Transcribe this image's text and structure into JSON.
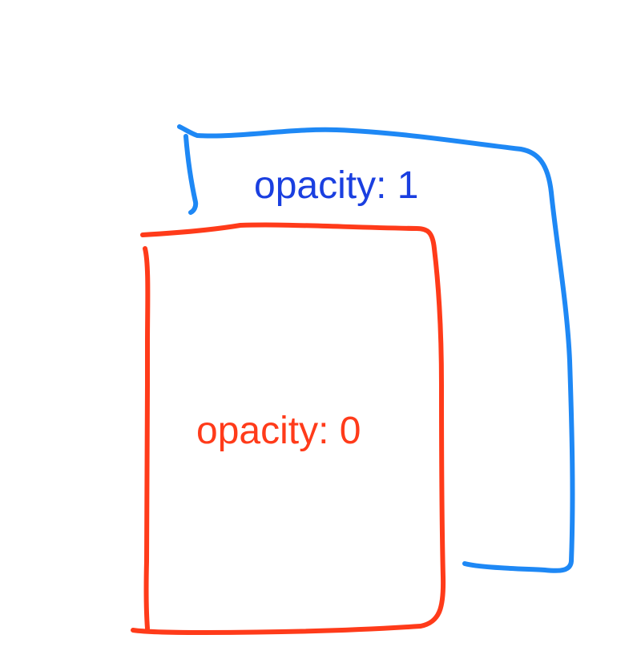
{
  "diagram": {
    "back_box": {
      "label": "opacity: 1",
      "color": "#1e88f5",
      "label_color": "#1a3fe0"
    },
    "front_box": {
      "label": "opacity: 0",
      "color": "#ff3b1a",
      "label_color": "#ff3b1a"
    }
  }
}
